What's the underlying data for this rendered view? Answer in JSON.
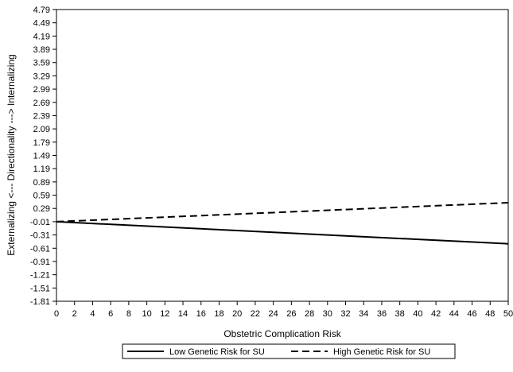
{
  "chart_data": {
    "type": "line",
    "title": "",
    "xlabel": "Obstetric Complication Risk",
    "ylabel": "Externalizing <--- Directionality ---> Internalizing",
    "xlim": [
      0,
      50
    ],
    "ylim": [
      -1.81,
      4.79
    ],
    "x_ticks": [
      0,
      2,
      4,
      6,
      8,
      10,
      12,
      14,
      16,
      18,
      20,
      22,
      24,
      26,
      28,
      30,
      32,
      34,
      36,
      38,
      40,
      42,
      44,
      46,
      48,
      50
    ],
    "y_ticks": [
      "4.79",
      "4.49",
      "4.19",
      "3.89",
      "3.59",
      "3.29",
      "2.99",
      "2.69",
      "2.39",
      "2.09",
      "1.79",
      "1.49",
      "1.19",
      "0.89",
      "0.59",
      "0.29",
      "-0.01",
      "-0.31",
      "-0.61",
      "-0.91",
      "-1.21",
      "-1.51",
      "-1.81"
    ],
    "grid": false,
    "legend_position": "bottom",
    "series": [
      {
        "name": "Low Genetic Risk for SU",
        "style": "solid",
        "color": "#000000",
        "x": [
          0,
          50
        ],
        "y": [
          -0.01,
          -0.51
        ]
      },
      {
        "name": "High Genetic Risk for SU",
        "style": "dashed",
        "color": "#000000",
        "x": [
          0,
          50
        ],
        "y": [
          -0.01,
          0.42
        ]
      }
    ]
  }
}
